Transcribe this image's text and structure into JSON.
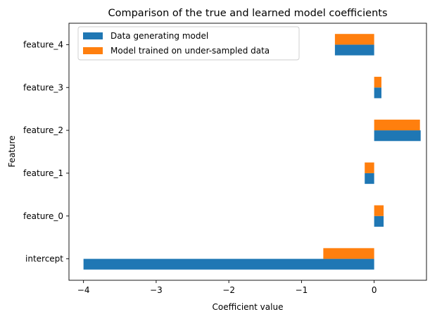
{
  "chart_data": {
    "type": "bar",
    "orientation": "horizontal",
    "title": "Comparison of the true and learned model coefficients",
    "xlabel": "Coefficient value",
    "ylabel": "Feature",
    "categories": [
      "intercept",
      "feature_0",
      "feature_1",
      "feature_2",
      "feature_3",
      "feature_4"
    ],
    "series": [
      {
        "name": "Data generating model",
        "color": "#1f77b4",
        "values": [
          -4.0,
          0.13,
          -0.13,
          0.64,
          0.1,
          -0.54
        ]
      },
      {
        "name": "Model trained on under-sampled data",
        "color": "#ff7f0e",
        "values": [
          -0.7,
          0.13,
          -0.13,
          0.63,
          0.1,
          -0.54
        ]
      }
    ],
    "xlim": [
      -4.2,
      0.72
    ],
    "xticks": [
      -4,
      -3,
      -2,
      -1,
      0
    ],
    "xtick_labels": [
      "−4",
      "−3",
      "−2",
      "−1",
      "0"
    ],
    "grid": false,
    "legend_position": "top-left"
  }
}
